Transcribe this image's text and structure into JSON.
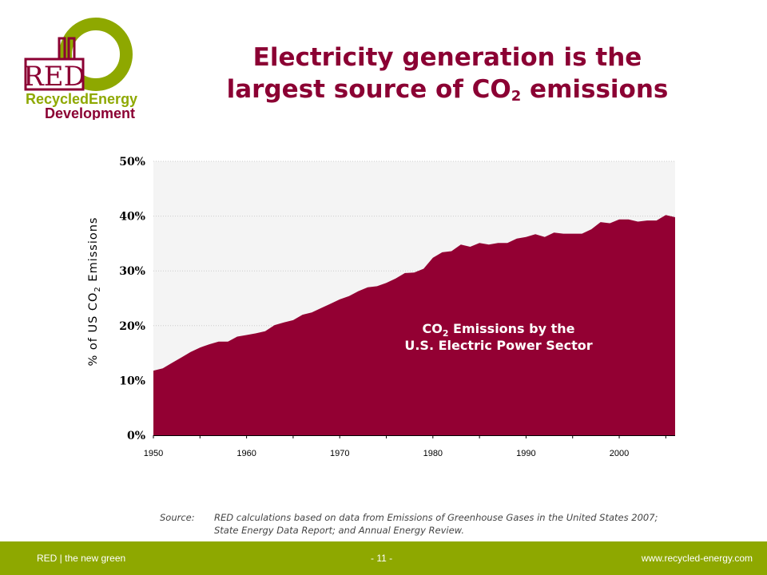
{
  "logo": {
    "text": "RED",
    "line1": "RecycledEnergy",
    "line2": "Development"
  },
  "title": {
    "line1": "Electricity generation is the",
    "line2_pre": "largest source of CO",
    "line2_sub": "2",
    "line2_post": " emissions"
  },
  "chart_data": {
    "type": "area",
    "title": "",
    "xlabel": "",
    "ylabel_pre": "% of US CO",
    "ylabel_sub": "2",
    "ylabel_post": " Emissions",
    "xlim": [
      1950,
      2006
    ],
    "ylim": [
      0,
      50
    ],
    "yticks": [
      "0%",
      "10%",
      "20%",
      "30%",
      "40%",
      "50%"
    ],
    "xtick_labels": [
      "1950",
      "1960",
      "1970",
      "1980",
      "1990",
      "2000"
    ],
    "grid": true,
    "annotation": {
      "line1_pre": "CO",
      "line1_sub": "2",
      "line1_post": " Emissions by the",
      "line2": "U.S. Electric Power Sector"
    },
    "series": [
      {
        "name": "",
        "color": "#930033",
        "x": [
          1950,
          1951,
          1952,
          1953,
          1954,
          1955,
          1956,
          1957,
          1958,
          1959,
          1960,
          1961,
          1962,
          1963,
          1964,
          1965,
          1966,
          1967,
          1968,
          1969,
          1970,
          1971,
          1972,
          1973,
          1974,
          1975,
          1976,
          1977,
          1978,
          1979,
          1980,
          1981,
          1982,
          1983,
          1984,
          1985,
          1986,
          1987,
          1988,
          1989,
          1990,
          1991,
          1992,
          1993,
          1994,
          1995,
          1996,
          1997,
          1998,
          1999,
          2000,
          2001,
          2002,
          2003,
          2004,
          2005,
          2006
        ],
        "values": [
          11.8,
          12.2,
          13.2,
          14.2,
          15.2,
          16.0,
          16.6,
          17.1,
          17.1,
          18.0,
          18.3,
          18.6,
          19.0,
          20.1,
          20.6,
          21.0,
          22.0,
          22.4,
          23.2,
          24.0,
          24.8,
          25.4,
          26.3,
          27.0,
          27.2,
          27.8,
          28.6,
          29.6,
          29.7,
          30.4,
          32.4,
          33.4,
          33.6,
          34.8,
          34.4,
          35.1,
          34.8,
          35.1,
          35.1,
          35.9,
          36.2,
          36.7,
          36.2,
          37.0,
          36.8,
          36.8,
          36.8,
          37.6,
          38.9,
          38.7,
          39.4,
          39.4,
          39.0,
          39.2,
          39.2,
          40.2,
          39.8
        ]
      }
    ]
  },
  "source": {
    "label": "Source:",
    "line1": "RED calculations based on data from Emissions of Greenhouse Gases in the United States 2007;",
    "line2": "State Energy Data Report; and Annual Energy Review."
  },
  "footer": {
    "left": "RED | the new green",
    "center": "- 11 -",
    "right": "www.recycled-energy.com"
  },
  "colors": {
    "brand_red": "#8b0033",
    "brand_green": "#8ea800",
    "area": "#930033"
  }
}
